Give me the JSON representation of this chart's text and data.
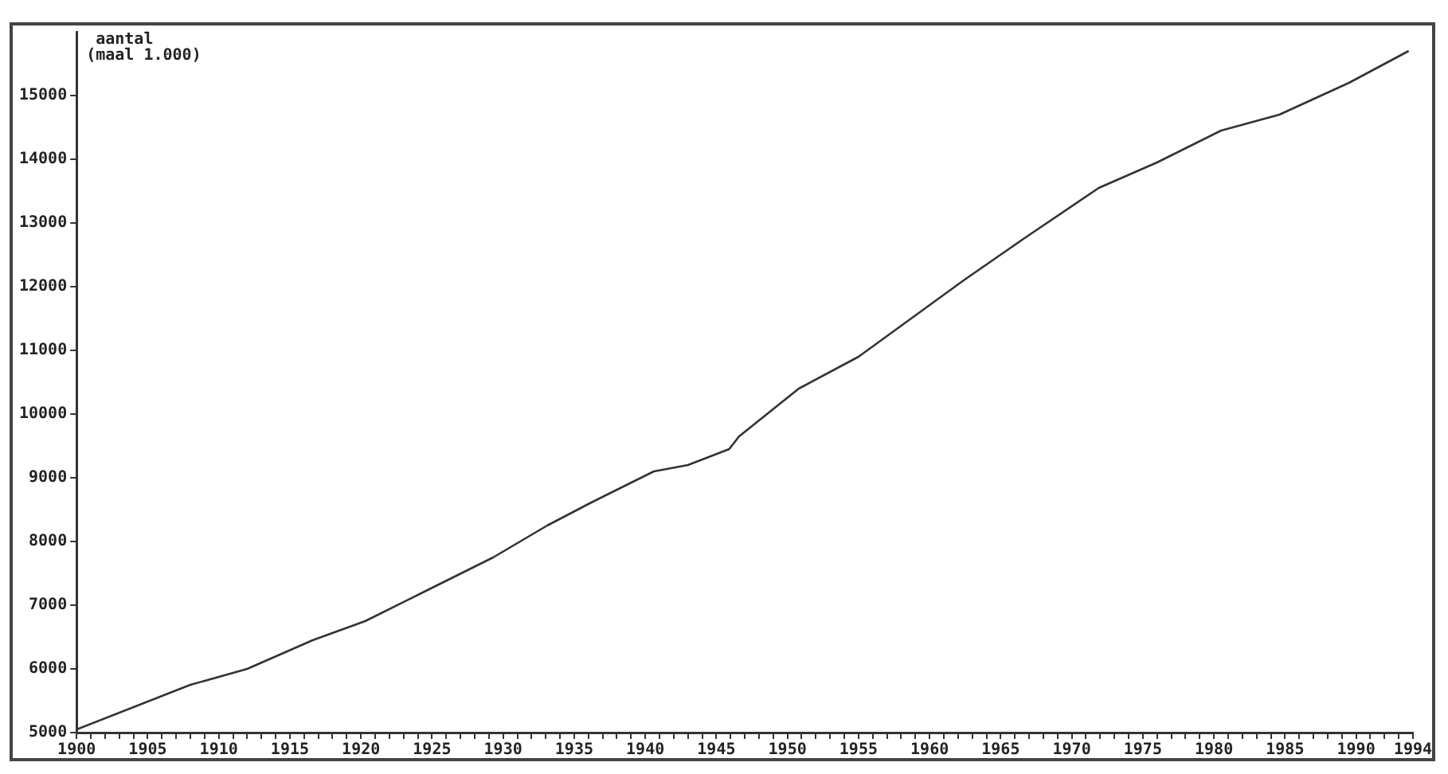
{
  "chart_data": {
    "type": "line",
    "ylabel": "aantal\n(maal 1.000)",
    "x": [
      1900,
      1908,
      1912,
      1916.6,
      1920.3,
      1924.8,
      1929.3,
      1933.1,
      1936.1,
      1940.6,
      1943,
      1945.9,
      1946.6,
      1950.8,
      1955,
      1958.7,
      1962.4,
      1966.6,
      1971.9,
      1976,
      1980.5,
      1984.6,
      1989.5,
      1993.7
    ],
    "series": [
      {
        "color": "#333333",
        "values": [
          5050,
          5750,
          6000,
          6450,
          6750,
          7250,
          7750,
          8250,
          8600,
          9100,
          9200,
          9450,
          9650,
          10400,
          10900,
          11500,
          12100,
          12750,
          13550,
          13950,
          14450,
          14700,
          15200,
          15700
        ]
      }
    ],
    "xlim": [
      1900,
      1994
    ],
    "xticks": [
      1900,
      {
        "value": 1901,
        "label": null
      },
      {
        "value": 1902,
        "label": null
      },
      {
        "value": 1903,
        "label": null
      },
      {
        "value": 1904,
        "label": null
      },
      1905,
      {
        "value": 1906,
        "label": null
      },
      {
        "value": 1907,
        "label": null
      },
      {
        "value": 1908,
        "label": null
      },
      {
        "value": 1909,
        "label": null
      },
      1910,
      {
        "value": 1911,
        "label": null
      },
      {
        "value": 1912,
        "label": null
      },
      {
        "value": 1913,
        "label": null
      },
      {
        "value": 1914,
        "label": null
      },
      1915,
      {
        "value": 1916,
        "label": null
      },
      {
        "value": 1917,
        "label": null
      },
      {
        "value": 1918,
        "label": null
      },
      {
        "value": 1919,
        "label": null
      },
      1920,
      {
        "value": 1921,
        "label": null
      },
      {
        "value": 1922,
        "label": null
      },
      {
        "value": 1923,
        "label": null
      },
      {
        "value": 1924,
        "label": null
      },
      1925,
      {
        "value": 1926,
        "label": null
      },
      {
        "value": 1927,
        "label": null
      },
      {
        "value": 1928,
        "label": null
      },
      {
        "value": 1929,
        "label": null
      },
      1930,
      {
        "value": 1931,
        "label": null
      },
      {
        "value": 1932,
        "label": null
      },
      {
        "value": 1933,
        "label": null
      },
      {
        "value": 1934,
        "label": null
      },
      1935,
      {
        "value": 1936,
        "label": null
      },
      {
        "value": 1937,
        "label": null
      },
      {
        "value": 1938,
        "label": null
      },
      {
        "value": 1939,
        "label": null
      },
      1940,
      {
        "value": 1941,
        "label": null
      },
      {
        "value": 1942,
        "label": null
      },
      {
        "value": 1943,
        "label": null
      },
      {
        "value": 1944,
        "label": null
      },
      1945,
      {
        "value": 1946,
        "label": null
      },
      {
        "value": 1947,
        "label": null
      },
      {
        "value": 1948,
        "label": null
      },
      {
        "value": 1949,
        "label": null
      },
      1950,
      {
        "value": 1951,
        "label": null
      },
      {
        "value": 1952,
        "label": null
      },
      {
        "value": 1953,
        "label": null
      },
      {
        "value": 1954,
        "label": null
      },
      1955,
      {
        "value": 1956,
        "label": null
      },
      {
        "value": 1957,
        "label": null
      },
      {
        "value": 1958,
        "label": null
      },
      {
        "value": 1959,
        "label": null
      },
      1960,
      {
        "value": 1961,
        "label": null
      },
      {
        "value": 1962,
        "label": null
      },
      {
        "value": 1963,
        "label": null
      },
      {
        "value": 1964,
        "label": null
      },
      1965,
      {
        "value": 1966,
        "label": null
      },
      {
        "value": 1967,
        "label": null
      },
      {
        "value": 1968,
        "label": null
      },
      {
        "value": 1969,
        "label": null
      },
      1970,
      {
        "value": 1971,
        "label": null
      },
      {
        "value": 1972,
        "label": null
      },
      {
        "value": 1973,
        "label": null
      },
      {
        "value": 1974,
        "label": null
      },
      1975,
      {
        "value": 1976,
        "label": null
      },
      {
        "value": 1977,
        "label": null
      },
      {
        "value": 1978,
        "label": null
      },
      {
        "value": 1979,
        "label": null
      },
      1980,
      {
        "value": 1981,
        "label": null
      },
      {
        "value": 1982,
        "label": null
      },
      {
        "value": 1983,
        "label": null
      },
      {
        "value": 1984,
        "label": null
      },
      1985,
      {
        "value": 1986,
        "label": null
      },
      {
        "value": 1987,
        "label": null
      },
      {
        "value": 1988,
        "label": null
      },
      {
        "value": 1989,
        "label": null
      },
      1990,
      {
        "value": 1991,
        "label": null
      },
      {
        "value": 1992,
        "label": null
      },
      {
        "value": 1993,
        "label": null
      },
      1994
    ],
    "ylim": [
      5000,
      16000
    ],
    "yticks": [
      5000,
      6000,
      7000,
      8000,
      9000,
      10000,
      11000,
      12000,
      13000,
      14000,
      15000
    ],
    "grid": false,
    "legend": false,
    "marker": "none",
    "line_style": "solid"
  }
}
